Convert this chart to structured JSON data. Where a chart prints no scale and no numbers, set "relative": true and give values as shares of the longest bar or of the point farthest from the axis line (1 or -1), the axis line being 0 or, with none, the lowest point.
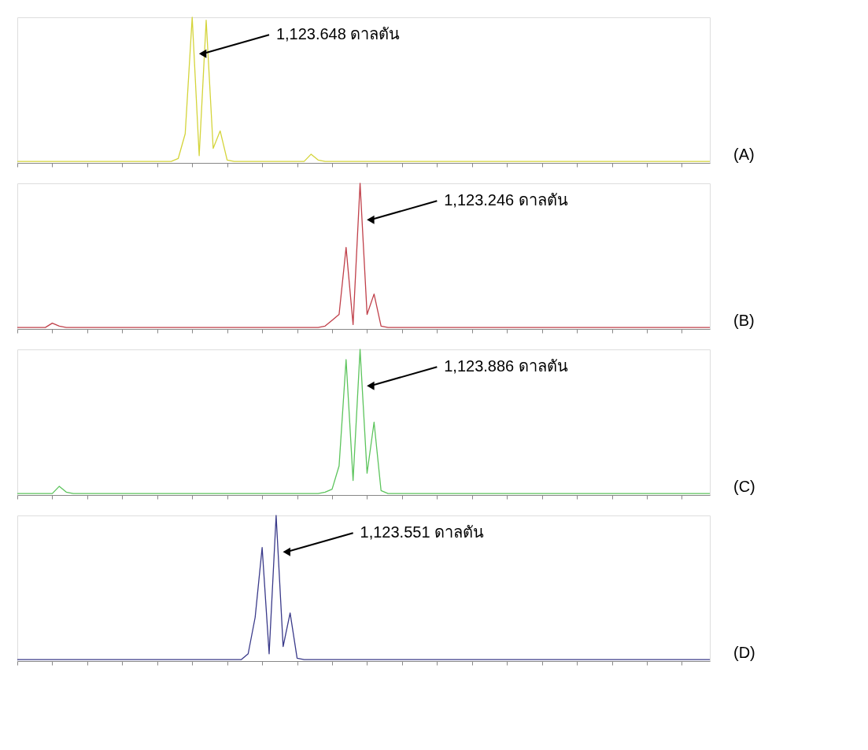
{
  "chart_data": [
    {
      "type": "line",
      "relative": true,
      "tick_labels": false,
      "grid": false,
      "categories": [
        null,
        null,
        null,
        null,
        null,
        null,
        null,
        null,
        null,
        null,
        null,
        null,
        null,
        null,
        null,
        null,
        null,
        null,
        null,
        null,
        null,
        null,
        null,
        null,
        null,
        null,
        null,
        null,
        null,
        null,
        null,
        null,
        null,
        null,
        null,
        null,
        null,
        null,
        null,
        null,
        null,
        null,
        null,
        null,
        null,
        null,
        null,
        null,
        null,
        null,
        null,
        null,
        null,
        null,
        null,
        null,
        null,
        null,
        null,
        null,
        null,
        null,
        null,
        null,
        null,
        null,
        null,
        null,
        null,
        null,
        null,
        null,
        null,
        null,
        null,
        null,
        null,
        null,
        null,
        null,
        null,
        null,
        null,
        null,
        null,
        null,
        null,
        null,
        null,
        null,
        null,
        null,
        null,
        null,
        null,
        null,
        null,
        null,
        null,
        null
      ],
      "series": [
        {
          "color": "#d4d43a",
          "values": [
            0.01,
            0.01,
            0.01,
            0.01,
            0.01,
            0.01,
            0.01,
            0.01,
            0.01,
            0.01,
            0.01,
            0.01,
            0.01,
            0.01,
            0.01,
            0.01,
            0.01,
            0.01,
            0.01,
            0.01,
            0.01,
            0.01,
            0.01,
            0.03,
            0.2,
            1.0,
            0.05,
            0.98,
            0.1,
            0.22,
            0.02,
            0.01,
            0.01,
            0.01,
            0.01,
            0.01,
            0.01,
            0.01,
            0.01,
            0.01,
            0.01,
            0.01,
            0.06,
            0.02,
            0.01,
            0.01,
            0.01,
            0.01,
            0.01,
            0.01,
            0.01,
            0.01,
            0.01,
            0.01,
            0.01,
            0.01,
            0.01,
            0.01,
            0.01,
            0.01,
            0.01,
            0.01,
            0.01,
            0.01,
            0.01,
            0.01,
            0.01,
            0.01,
            0.01,
            0.01,
            0.01,
            0.01,
            0.01,
            0.01,
            0.01,
            0.01,
            0.01,
            0.01,
            0.01,
            0.01,
            0.01,
            0.01,
            0.01,
            0.01,
            0.01,
            0.01,
            0.01,
            0.01,
            0.01,
            0.01,
            0.01,
            0.01,
            0.01,
            0.01,
            0.01,
            0.01,
            0.01,
            0.01,
            0.01,
            0.01
          ]
        }
      ],
      "annotations": [
        "1,123.648 ดาลตัน",
        "(A)"
      ]
    },
    {
      "type": "line",
      "relative": true,
      "tick_labels": false,
      "grid": false,
      "categories": [
        null,
        null,
        null,
        null,
        null,
        null,
        null,
        null,
        null,
        null,
        null,
        null,
        null,
        null,
        null,
        null,
        null,
        null,
        null,
        null,
        null,
        null,
        null,
        null,
        null,
        null,
        null,
        null,
        null,
        null,
        null,
        null,
        null,
        null,
        null,
        null,
        null,
        null,
        null,
        null,
        null,
        null,
        null,
        null,
        null,
        null,
        null,
        null,
        null,
        null,
        null,
        null,
        null,
        null,
        null,
        null,
        null,
        null,
        null,
        null,
        null,
        null,
        null,
        null,
        null,
        null,
        null,
        null,
        null,
        null,
        null,
        null,
        null,
        null,
        null,
        null,
        null,
        null,
        null,
        null,
        null,
        null,
        null,
        null,
        null,
        null,
        null,
        null,
        null,
        null,
        null,
        null,
        null,
        null,
        null,
        null,
        null,
        null,
        null,
        null
      ],
      "series": [
        {
          "color": "#c0404a",
          "values": [
            0.01,
            0.01,
            0.01,
            0.01,
            0.01,
            0.04,
            0.02,
            0.01,
            0.01,
            0.01,
            0.01,
            0.01,
            0.01,
            0.01,
            0.01,
            0.01,
            0.01,
            0.01,
            0.01,
            0.01,
            0.01,
            0.01,
            0.01,
            0.01,
            0.01,
            0.01,
            0.01,
            0.01,
            0.01,
            0.01,
            0.01,
            0.01,
            0.01,
            0.01,
            0.01,
            0.01,
            0.01,
            0.01,
            0.01,
            0.01,
            0.01,
            0.01,
            0.01,
            0.01,
            0.02,
            0.06,
            0.1,
            0.56,
            0.03,
            1.0,
            0.1,
            0.24,
            0.02,
            0.01,
            0.01,
            0.01,
            0.01,
            0.01,
            0.01,
            0.01,
            0.01,
            0.01,
            0.01,
            0.01,
            0.01,
            0.01,
            0.01,
            0.01,
            0.01,
            0.01,
            0.01,
            0.01,
            0.01,
            0.01,
            0.01,
            0.01,
            0.01,
            0.01,
            0.01,
            0.01,
            0.01,
            0.01,
            0.01,
            0.01,
            0.01,
            0.01,
            0.01,
            0.01,
            0.01,
            0.01,
            0.01,
            0.01,
            0.01,
            0.01,
            0.01,
            0.01,
            0.01,
            0.01,
            0.01,
            0.01
          ]
        }
      ],
      "annotations": [
        "1,123.246 ดาลตัน",
        "(B)"
      ]
    },
    {
      "type": "line",
      "relative": true,
      "tick_labels": false,
      "grid": false,
      "categories": [
        null,
        null,
        null,
        null,
        null,
        null,
        null,
        null,
        null,
        null,
        null,
        null,
        null,
        null,
        null,
        null,
        null,
        null,
        null,
        null,
        null,
        null,
        null,
        null,
        null,
        null,
        null,
        null,
        null,
        null,
        null,
        null,
        null,
        null,
        null,
        null,
        null,
        null,
        null,
        null,
        null,
        null,
        null,
        null,
        null,
        null,
        null,
        null,
        null,
        null,
        null,
        null,
        null,
        null,
        null,
        null,
        null,
        null,
        null,
        null,
        null,
        null,
        null,
        null,
        null,
        null,
        null,
        null,
        null,
        null,
        null,
        null,
        null,
        null,
        null,
        null,
        null,
        null,
        null,
        null,
        null,
        null,
        null,
        null,
        null,
        null,
        null,
        null,
        null,
        null,
        null,
        null,
        null,
        null,
        null,
        null,
        null,
        null,
        null,
        null
      ],
      "series": [
        {
          "color": "#5cc45c",
          "values": [
            0.01,
            0.01,
            0.01,
            0.01,
            0.01,
            0.01,
            0.06,
            0.02,
            0.01,
            0.01,
            0.01,
            0.01,
            0.01,
            0.01,
            0.01,
            0.01,
            0.01,
            0.01,
            0.01,
            0.01,
            0.01,
            0.01,
            0.01,
            0.01,
            0.01,
            0.01,
            0.01,
            0.01,
            0.01,
            0.01,
            0.01,
            0.01,
            0.01,
            0.01,
            0.01,
            0.01,
            0.01,
            0.01,
            0.01,
            0.01,
            0.01,
            0.01,
            0.01,
            0.01,
            0.02,
            0.04,
            0.2,
            0.93,
            0.1,
            1.0,
            0.15,
            0.5,
            0.03,
            0.01,
            0.01,
            0.01,
            0.01,
            0.01,
            0.01,
            0.01,
            0.01,
            0.01,
            0.01,
            0.01,
            0.01,
            0.01,
            0.01,
            0.01,
            0.01,
            0.01,
            0.01,
            0.01,
            0.01,
            0.01,
            0.01,
            0.01,
            0.01,
            0.01,
            0.01,
            0.01,
            0.01,
            0.01,
            0.01,
            0.01,
            0.01,
            0.01,
            0.01,
            0.01,
            0.01,
            0.01,
            0.01,
            0.01,
            0.01,
            0.01,
            0.01,
            0.01,
            0.01,
            0.01,
            0.01,
            0.01
          ]
        }
      ],
      "annotations": [
        "1,123.886 ดาลตัน",
        "(C)"
      ]
    },
    {
      "type": "line",
      "relative": true,
      "tick_labels": false,
      "grid": false,
      "categories": [
        null,
        null,
        null,
        null,
        null,
        null,
        null,
        null,
        null,
        null,
        null,
        null,
        null,
        null,
        null,
        null,
        null,
        null,
        null,
        null,
        null,
        null,
        null,
        null,
        null,
        null,
        null,
        null,
        null,
        null,
        null,
        null,
        null,
        null,
        null,
        null,
        null,
        null,
        null,
        null,
        null,
        null,
        null,
        null,
        null,
        null,
        null,
        null,
        null,
        null,
        null,
        null,
        null,
        null,
        null,
        null,
        null,
        null,
        null,
        null,
        null,
        null,
        null,
        null,
        null,
        null,
        null,
        null,
        null,
        null,
        null,
        null,
        null,
        null,
        null,
        null,
        null,
        null,
        null,
        null,
        null,
        null,
        null,
        null,
        null,
        null,
        null,
        null,
        null,
        null,
        null,
        null,
        null,
        null,
        null,
        null,
        null,
        null,
        null,
        null
      ],
      "series": [
        {
          "color": "#3a3a8a",
          "values": [
            0.01,
            0.01,
            0.01,
            0.01,
            0.01,
            0.01,
            0.01,
            0.01,
            0.01,
            0.01,
            0.01,
            0.01,
            0.01,
            0.01,
            0.01,
            0.01,
            0.01,
            0.01,
            0.01,
            0.01,
            0.01,
            0.01,
            0.01,
            0.01,
            0.01,
            0.01,
            0.01,
            0.01,
            0.01,
            0.01,
            0.01,
            0.01,
            0.01,
            0.05,
            0.3,
            0.78,
            0.05,
            1.0,
            0.1,
            0.33,
            0.02,
            0.01,
            0.01,
            0.01,
            0.01,
            0.01,
            0.01,
            0.01,
            0.01,
            0.01,
            0.01,
            0.01,
            0.01,
            0.01,
            0.01,
            0.01,
            0.01,
            0.01,
            0.01,
            0.01,
            0.01,
            0.01,
            0.01,
            0.01,
            0.01,
            0.01,
            0.01,
            0.01,
            0.01,
            0.01,
            0.01,
            0.01,
            0.01,
            0.01,
            0.01,
            0.01,
            0.01,
            0.01,
            0.01,
            0.01,
            0.01,
            0.01,
            0.01,
            0.01,
            0.01,
            0.01,
            0.01,
            0.01,
            0.01,
            0.01,
            0.01,
            0.01,
            0.01,
            0.01,
            0.01,
            0.01,
            0.01,
            0.01,
            0.01,
            0.01
          ]
        }
      ],
      "annotations": [
        "1,123.551 ดาลตัน",
        "(D)"
      ]
    }
  ]
}
